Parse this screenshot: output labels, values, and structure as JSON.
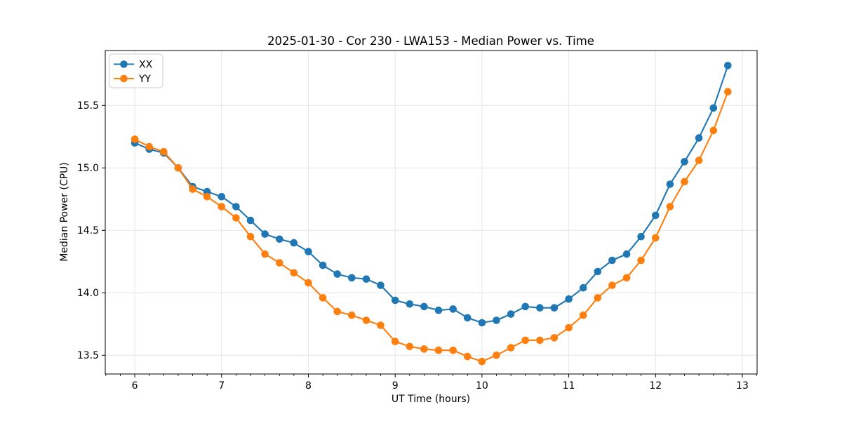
{
  "figure": {
    "background": "#ffffff"
  },
  "chart_data": {
    "type": "line",
    "title": "2025-01-30 - Cor 230 - LWA153 - Median Power vs. Time",
    "xlabel": "UT Time (hours)",
    "ylabel": "Median Power (CPU)",
    "xlim": [
      5.66,
      13.17
    ],
    "ylim": [
      13.35,
      15.94
    ],
    "x_ticks": [
      6,
      7,
      8,
      9,
      10,
      11,
      12,
      13
    ],
    "x_tick_labels": [
      "6",
      "7",
      "8",
      "9",
      "10",
      "11",
      "12",
      "13"
    ],
    "y_ticks": [
      13.5,
      14.0,
      14.5,
      15.0,
      15.5
    ],
    "y_tick_labels": [
      "13.5",
      "14.0",
      "14.5",
      "15.0",
      "15.5"
    ],
    "x_minor_step": 0.1666667,
    "grid": true,
    "grid_color": "#e6e6e6",
    "legend_position": "upper-left",
    "x": [
      6.0,
      6.167,
      6.333,
      6.5,
      6.667,
      6.833,
      7.0,
      7.167,
      7.333,
      7.5,
      7.667,
      7.833,
      8.0,
      8.167,
      8.333,
      8.5,
      8.667,
      8.833,
      9.0,
      9.167,
      9.333,
      9.5,
      9.667,
      9.833,
      10.0,
      10.167,
      10.333,
      10.5,
      10.667,
      10.833,
      11.0,
      11.167,
      11.333,
      11.5,
      11.667,
      11.833,
      12.0,
      12.167,
      12.333,
      12.5,
      12.667,
      12.833
    ],
    "series": [
      {
        "name": "XX",
        "color": "#1f77b4",
        "values": [
          15.2,
          15.15,
          15.12,
          15.0,
          14.85,
          14.81,
          14.77,
          14.69,
          14.58,
          14.47,
          14.43,
          14.4,
          14.33,
          14.22,
          14.15,
          14.12,
          14.11,
          14.06,
          13.94,
          13.91,
          13.89,
          13.86,
          13.87,
          13.8,
          13.76,
          13.78,
          13.83,
          13.89,
          13.88,
          13.88,
          13.95,
          14.04,
          14.17,
          14.26,
          14.31,
          14.45,
          14.62,
          14.87,
          15.05,
          15.24,
          15.48,
          15.82
        ]
      },
      {
        "name": "YY",
        "color": "#ff7f0e",
        "values": [
          15.23,
          15.17,
          15.13,
          15.0,
          14.83,
          14.77,
          14.69,
          14.6,
          14.45,
          14.31,
          14.24,
          14.16,
          14.08,
          13.96,
          13.85,
          13.82,
          13.78,
          13.74,
          13.61,
          13.57,
          13.55,
          13.54,
          13.54,
          13.49,
          13.45,
          13.5,
          13.56,
          13.62,
          13.62,
          13.64,
          13.72,
          13.82,
          13.96,
          14.06,
          14.12,
          14.26,
          14.44,
          14.69,
          14.89,
          15.06,
          15.3,
          15.61
        ]
      }
    ]
  },
  "style": {
    "spine_color": "#000000",
    "tick_color": "#000000",
    "legend_border_color": "#cccccc",
    "legend_background": "#ffffff"
  }
}
